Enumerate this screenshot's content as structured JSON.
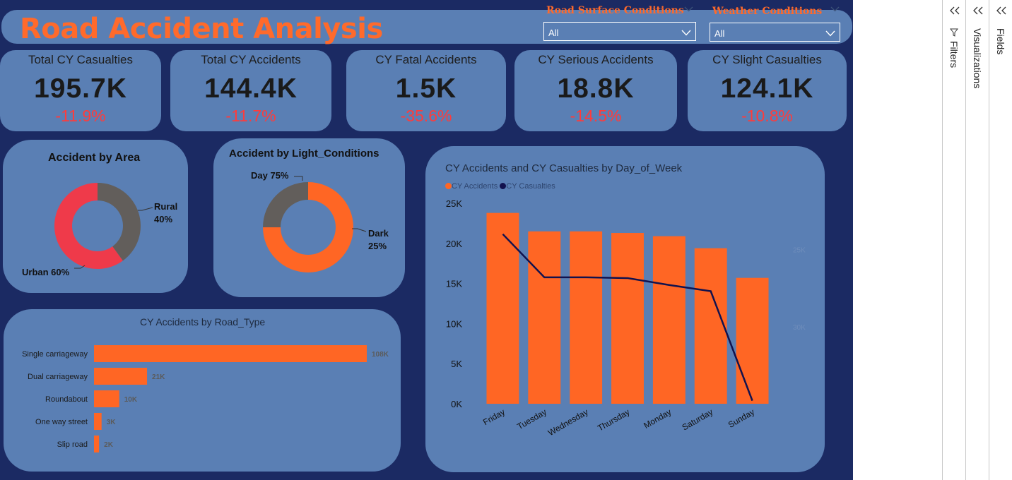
{
  "title": "Road Accident Analysis",
  "slicers": [
    {
      "label": "Road Surface Conditions",
      "value": "All"
    },
    {
      "label": "Weather Conditions",
      "value": "All"
    }
  ],
  "kpis": [
    {
      "label": "Total CY Casualties",
      "value": "195.7K",
      "change": "-11.9%"
    },
    {
      "label": "Total CY Accidents",
      "value": "144.4K",
      "change": "-11.7%"
    },
    {
      "label": "CY Fatal Accidents",
      "value": "1.5K",
      "change": "-35.6%"
    },
    {
      "label": "CY Serious Accidents",
      "value": "18.8K",
      "change": "-14.5%"
    },
    {
      "label": "CY Slight Casualties",
      "value": "124.1K",
      "change": "-10.8%"
    }
  ],
  "area_chart": {
    "title": "Accident by Area",
    "label_rural_name": "Rural",
    "label_rural_pct": "40%",
    "label_urban": "Urban 60%"
  },
  "light_chart": {
    "title": "Accident by Light_Conditions",
    "label_day": "Day 75%",
    "label_dark_name": "Dark",
    "label_dark_pct": "25%"
  },
  "road_chart": {
    "title": "CY Accidents by Road_Type",
    "bar_labels": [
      "108K",
      "21K",
      "10K",
      "3K",
      "2K"
    ]
  },
  "week_chart": {
    "title": "CY Accidents and CY Casualties by Day_of_Week",
    "legend": [
      "CY Accidents",
      "CY Casualties"
    ],
    "y_ticks": [
      "25K",
      "20K",
      "15K",
      "10K",
      "5K",
      "0K"
    ],
    "y2_ticks": [
      "30K",
      "25K"
    ]
  },
  "colors": {
    "orange": "#ff6624",
    "red": "#ef3a4a",
    "gray": "#625e5b",
    "navy": "#12124e",
    "panel": "#5a7fb4",
    "background": "#1b2a63"
  },
  "chart_data": [
    {
      "type": "pie",
      "title": "Accident by Area",
      "categories": [
        "Rural",
        "Urban"
      ],
      "values": [
        40,
        60
      ],
      "unit": "%"
    },
    {
      "type": "pie",
      "title": "Accident by Light_Conditions",
      "categories": [
        "Day",
        "Dark"
      ],
      "values": [
        75,
        25
      ],
      "unit": "%"
    },
    {
      "type": "bar",
      "orientation": "horizontal",
      "title": "CY Accidents by Road_Type",
      "categories": [
        "Single carriageway",
        "Dual carriageway",
        "Roundabout",
        "One way street",
        "Slip road"
      ],
      "values": [
        108000,
        21000,
        10000,
        3000,
        2000
      ],
      "xlim": [
        0,
        108000
      ]
    },
    {
      "type": "bar",
      "title": "CY Accidents and CY Casualties by Day_of_Week",
      "categories": [
        "Friday",
        "Tuesday",
        "Wednesday",
        "Thursday",
        "Monday",
        "Saturday",
        "Sunday"
      ],
      "series": [
        {
          "name": "CY Accidents",
          "type": "bar",
          "axis": "left",
          "values": [
            23800,
            21500,
            21500,
            21300,
            20900,
            19400,
            15700
          ]
        },
        {
          "name": "CY Casualties",
          "type": "line",
          "axis": "right",
          "values": [
            31000,
            28200,
            28200,
            28150,
            27700,
            27300,
            20200
          ]
        }
      ],
      "ylim": [
        0,
        25000
      ],
      "y2lim": [
        20000,
        33000
      ],
      "y_ticks": [
        0,
        5000,
        10000,
        15000,
        20000,
        25000
      ],
      "y2_ticks": [
        25000,
        30000
      ],
      "legend_position": "top-left"
    }
  ]
}
